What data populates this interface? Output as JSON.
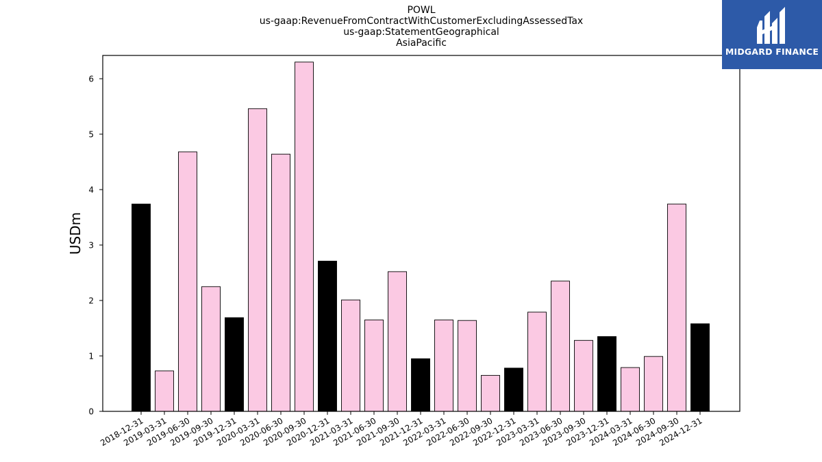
{
  "titles": {
    "line1": "POWL",
    "line2": "us-gaap:RevenueFromContractWithCustomerExcludingAssessedTax",
    "line3": "us-gaap:StatementGeographical",
    "line4": "AsiaPacific"
  },
  "logo": {
    "text": "MIDGARD FINANCE",
    "background": "#2d5aa8"
  },
  "chart_data": {
    "type": "bar",
    "title": "POWL",
    "subtitle": [
      "us-gaap:RevenueFromContractWithCustomerExcludingAssessedTax",
      "us-gaap:StatementGeographical",
      "AsiaPacific"
    ],
    "xlabel": "",
    "ylabel": "USDm",
    "ylim": [
      0,
      6.42
    ],
    "yticks": [
      0,
      1,
      2,
      3,
      4,
      5,
      6
    ],
    "grid": false,
    "categories": [
      "2018-12-31",
      "2019-03-31",
      "2019-06-30",
      "2019-09-30",
      "2019-12-31",
      "2020-03-31",
      "2020-06-30",
      "2020-09-30",
      "2020-12-31",
      "2021-03-31",
      "2021-06-30",
      "2021-09-30",
      "2021-12-31",
      "2022-03-31",
      "2022-06-30",
      "2022-09-30",
      "2022-12-31",
      "2023-03-31",
      "2023-06-30",
      "2023-09-30",
      "2023-12-31",
      "2024-03-31",
      "2024-06-30",
      "2024-09-30",
      "2024-12-31"
    ],
    "values": [
      3.74,
      0.73,
      4.68,
      2.25,
      1.69,
      5.46,
      4.64,
      6.3,
      2.71,
      2.01,
      1.65,
      2.52,
      0.95,
      1.65,
      1.64,
      0.65,
      0.78,
      1.79,
      2.35,
      1.28,
      1.35,
      0.79,
      0.99,
      3.74,
      1.58
    ],
    "highlight_quarter": "12-31",
    "colors": {
      "quarter": "#fbc9e3",
      "year_end": "#000000",
      "edge": "#000000"
    }
  }
}
